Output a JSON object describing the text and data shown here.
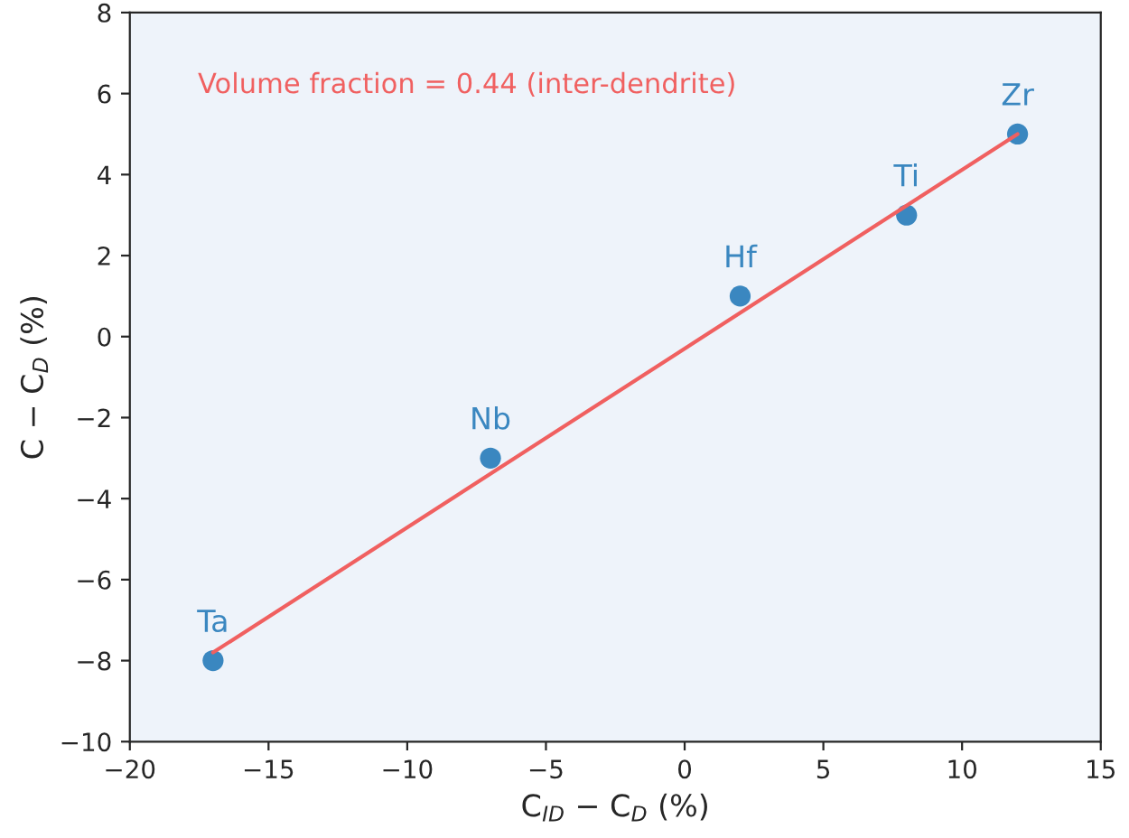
{
  "chart_data": {
    "type": "scatter",
    "xlabel": "C$_{ID}$ − C$_{D}$ (%)",
    "ylabel": "C − C$_{D}$ (%)",
    "series": [
      {
        "marker": "circle",
        "color": "#3a87c0",
        "x": [
          -17,
          -7,
          2,
          8,
          12
        ],
        "values": [
          -8,
          -3,
          1,
          3,
          5
        ]
      },
      {
        "type": "line",
        "marker": "none",
        "color": "#f06060",
        "x": [
          -17,
          12
        ],
        "values": [
          -7.8,
          5.0
        ]
      }
    ],
    "annotations": [
      "Volume fraction = 0.44 (inter-dendrite)",
      {
        "text": "Ta",
        "x": -17,
        "y": -8
      },
      {
        "text": "Nb",
        "x": -7,
        "y": -3
      },
      {
        "text": "Hf",
        "x": 2,
        "y": 1
      },
      {
        "text": "Ti",
        "x": 8,
        "y": 3
      },
      {
        "text": "Zr",
        "x": 12,
        "y": 5
      }
    ],
    "xlim": [
      -20,
      15
    ],
    "ylim": [
      -10,
      8
    ],
    "xticks": [
      {
        "value": -20,
        "label": "−20"
      },
      {
        "value": -15,
        "label": "−15"
      },
      {
        "value": -10,
        "label": "−10"
      },
      {
        "value": -5,
        "label": "−5"
      },
      0,
      5,
      10,
      15
    ],
    "yticks": [
      {
        "value": -10,
        "label": "−10"
      },
      {
        "value": -8,
        "label": "−8"
      },
      {
        "value": -6,
        "label": "−6"
      },
      {
        "value": -4,
        "label": "−4"
      },
      {
        "value": -2,
        "label": "−2"
      },
      0,
      2,
      4,
      6,
      8
    ],
    "grid": false,
    "legend": false
  }
}
